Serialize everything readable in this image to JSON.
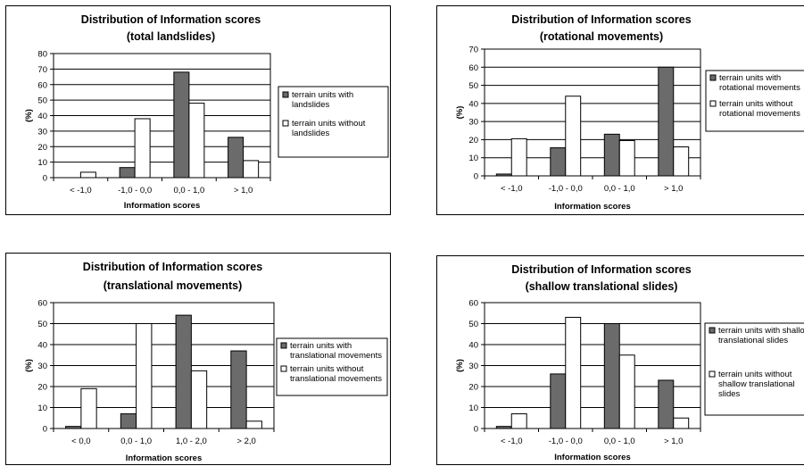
{
  "chart_data": [
    {
      "type": "bar",
      "title": "Distribution of Information  scores",
      "subtitle": "(total landslides)",
      "xlabel": "Information scores",
      "ylabel": "(%)",
      "ylim": [
        0,
        80
      ],
      "yticks": [
        0,
        10,
        20,
        30,
        40,
        50,
        60,
        70,
        80
      ],
      "grid": true,
      "legend": "right",
      "categories": [
        "< -1,0",
        "-1,0 - 0,0",
        "0,0 - 1,0",
        "> 1,0"
      ],
      "series": [
        {
          "name": "terrain units with landslides",
          "legend_lines": [
            "terrain units with",
            "landslides"
          ],
          "color": "#6b6b6b",
          "values": [
            0,
            6.5,
            68,
            26
          ]
        },
        {
          "name": "terrain units without landslides",
          "legend_lines": [
            "terrain units without",
            "landslides"
          ],
          "color": "#ffffff",
          "values": [
            3.5,
            38,
            48,
            11
          ]
        }
      ]
    },
    {
      "type": "bar",
      "title": "Distribution of Information scores",
      "subtitle": "(rotational movements)",
      "xlabel": "Information scores",
      "ylabel": "(%)",
      "ylim": [
        0,
        70
      ],
      "yticks": [
        0,
        10,
        20,
        30,
        40,
        50,
        60,
        70
      ],
      "grid": true,
      "legend": "right",
      "categories": [
        "< -1,0",
        "-1,0 - 0,0",
        "0,0 - 1,0",
        "> 1,0"
      ],
      "series": [
        {
          "name": "terrain units with rotational movements",
          "legend_lines": [
            "terrain units with",
            "rotational movements"
          ],
          "color": "#6b6b6b",
          "values": [
            1,
            15.5,
            23,
            60
          ]
        },
        {
          "name": "terrain units without rotational movements",
          "legend_lines": [
            "terrain units without",
            "rotational movements"
          ],
          "color": "#ffffff",
          "values": [
            20.5,
            44,
            19.5,
            16
          ]
        }
      ]
    },
    {
      "type": "bar",
      "title": "Distribution of Information scores",
      "subtitle": "(translational movements)",
      "xlabel": "Information scores",
      "ylabel": "(%)",
      "ylim": [
        0,
        60
      ],
      "yticks": [
        0,
        10,
        20,
        30,
        40,
        50,
        60
      ],
      "grid": true,
      "legend": "right",
      "categories": [
        "< 0,0",
        "0,0 - 1,0",
        "1,0 - 2,0",
        "> 2,0"
      ],
      "series": [
        {
          "name": "terrain units with translational movements",
          "legend_lines": [
            "terrain units with",
            "translational movements"
          ],
          "color": "#6b6b6b",
          "values": [
            1,
            7,
            54,
            37
          ]
        },
        {
          "name": "terrain units without translational movements",
          "legend_lines": [
            "terrain units without",
            "translational movements"
          ],
          "color": "#ffffff",
          "values": [
            19,
            50,
            27.5,
            3.5
          ]
        }
      ]
    },
    {
      "type": "bar",
      "title": "Distribution of Information scores",
      "subtitle": "(shallow translational slides)",
      "xlabel": "Information scores",
      "ylabel": "(%)",
      "ylim": [
        0,
        60
      ],
      "yticks": [
        0,
        10,
        20,
        30,
        40,
        50,
        60
      ],
      "grid": true,
      "legend": "right",
      "categories": [
        "< -1,0",
        "-1,0 - 0,0",
        "0,0 - 1,0",
        "> 1,0"
      ],
      "series": [
        {
          "name": "terrain units with shallow translational slides",
          "legend_lines": [
            "terrain units with shallow",
            "translational slides"
          ],
          "color": "#6b6b6b",
          "values": [
            1,
            26,
            50,
            23
          ]
        },
        {
          "name": "terrain units without shallow translational slides",
          "legend_lines": [
            "terrain units without",
            "shallow translational",
            "slides"
          ],
          "color": "#ffffff",
          "values": [
            7,
            53,
            35,
            5
          ]
        }
      ]
    }
  ]
}
